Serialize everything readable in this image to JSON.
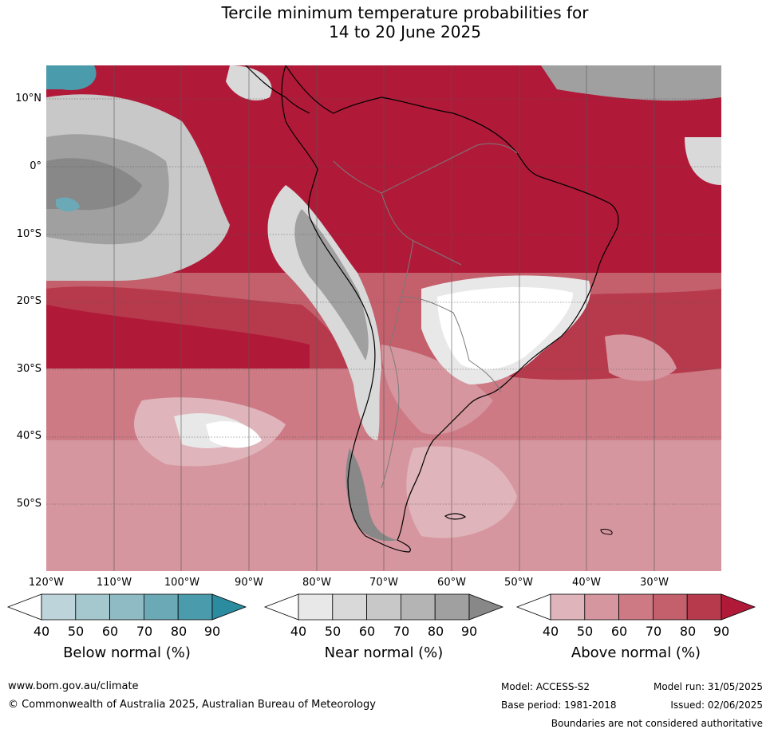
{
  "title": {
    "line1": "Tercile minimum temperature probabilities for",
    "line2": "14 to 20 June 2025"
  },
  "map": {
    "lat_labels": [
      "10°N",
      "0°",
      "10°S",
      "20°S",
      "30°S",
      "40°S",
      "50°S"
    ],
    "lon_labels": [
      "120°W",
      "110°W",
      "100°W",
      "90°W",
      "80°W",
      "70°W",
      "60°W",
      "50°W",
      "40°W",
      "30°W"
    ],
    "colors": {
      "above": [
        "#e0b4bb",
        "#d6969f",
        "#cd7a85",
        "#c45f6c",
        "#b73a4c",
        "#b01a38"
      ],
      "near": [
        "#e8e8e8",
        "#d9d9d9",
        "#c8c8c8",
        "#b4b4b4",
        "#a0a0a0",
        "#888888"
      ],
      "below": [
        "#bcd4da",
        "#a5c7ce",
        "#8fbbc4",
        "#6ba9b7",
        "#4a9bab",
        "#2b8ca0"
      ]
    }
  },
  "colorbars": [
    {
      "name": "below",
      "title": "Below normal (%)",
      "ticks": [
        "40",
        "50",
        "60",
        "70",
        "80",
        "90"
      ],
      "colors": [
        "#bcd4da",
        "#a5c7ce",
        "#8fbbc4",
        "#6ba9b7",
        "#4a9bab"
      ],
      "end_color": "#2b8ca0"
    },
    {
      "name": "near",
      "title": "Near normal (%)",
      "ticks": [
        "40",
        "50",
        "60",
        "70",
        "80",
        "90"
      ],
      "colors": [
        "#e8e8e8",
        "#d9d9d9",
        "#c8c8c8",
        "#b4b4b4",
        "#a0a0a0"
      ],
      "end_color": "#888888"
    },
    {
      "name": "above",
      "title": "Above normal (%)",
      "ticks": [
        "40",
        "50",
        "60",
        "70",
        "80",
        "90"
      ],
      "colors": [
        "#e0b4bb",
        "#d6969f",
        "#cd7a85",
        "#c45f6c",
        "#b73a4c"
      ],
      "end_color": "#b01a38"
    }
  ],
  "footer": {
    "website": "www.bom.gov.au/climate",
    "copyright": "© Commonwealth of Australia 2025, Australian Bureau of Meteorology",
    "model": "Model: ACCESS-S2",
    "base_period": "Base period: 1981-2018",
    "model_run": "Model run: 31/05/2025",
    "issued": "Issued: 02/06/2025",
    "disclaimer": "Boundaries are not considered authoritative"
  }
}
